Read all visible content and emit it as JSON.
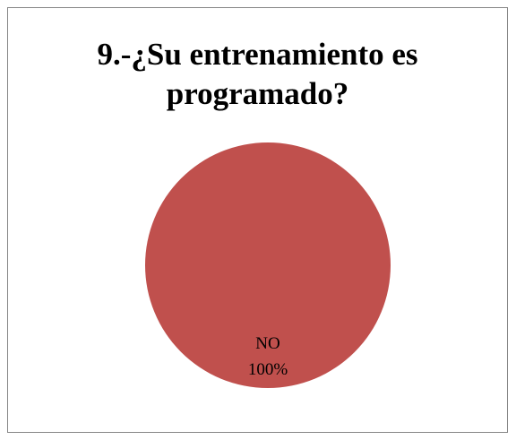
{
  "title_lines": [
    "9.-¿Su entrenamiento es",
    "programado?"
  ],
  "chart_data": {
    "type": "pie",
    "title": "9.-¿Su entrenamiento es programado?",
    "categories": [
      "NO"
    ],
    "values": [
      100
    ],
    "data_labels": [
      {
        "category": "NO",
        "percent": "100%"
      }
    ],
    "colors": [
      "#C0504D"
    ],
    "legend": "none"
  }
}
